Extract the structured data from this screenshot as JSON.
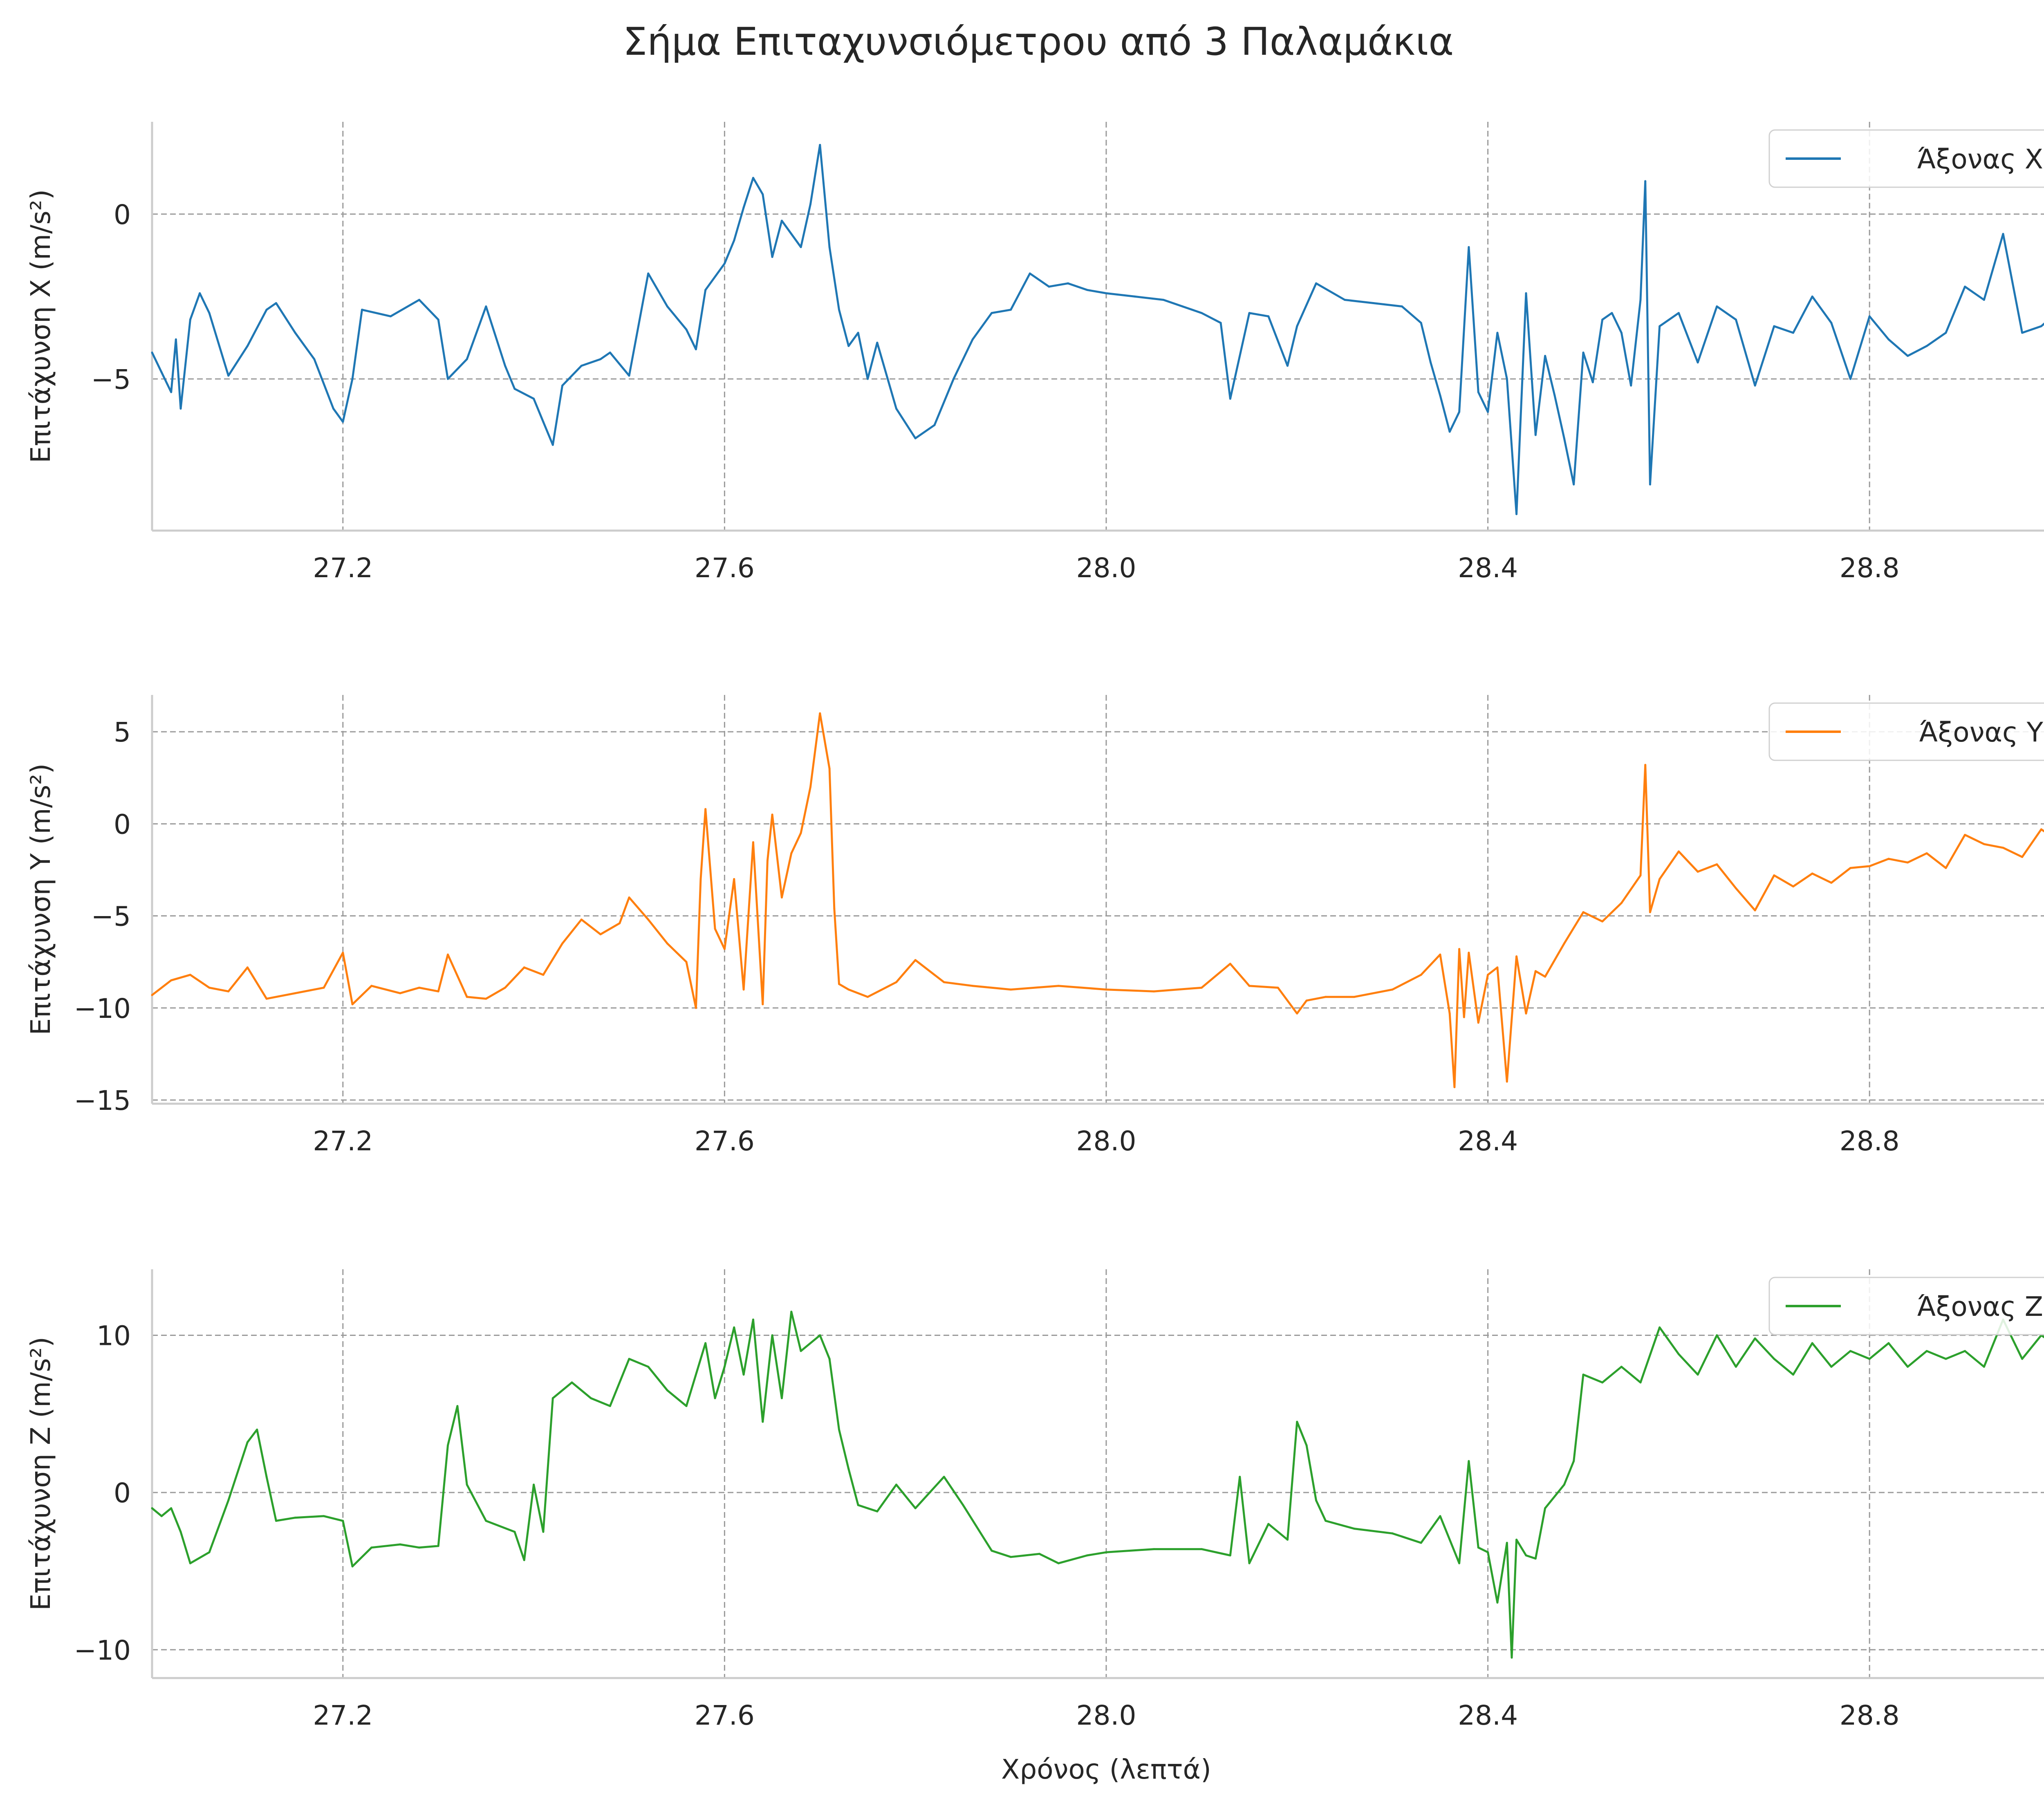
{
  "suptitle": "Σήμα Επιταχυνσιόμετρου από 3 Παλαμάκια",
  "chart_data": [
    {
      "type": "line",
      "title": "",
      "xlabel": "",
      "ylabel": "Επιτάχυνση X (m/s²)",
      "xlim": [
        27.0,
        29.0
      ],
      "ylim": [
        -9.6,
        2.8
      ],
      "xticks": [
        "27.2",
        "27.6",
        "28.0",
        "28.4",
        "28.8"
      ],
      "xtick_values": [
        27.2,
        27.6,
        28.0,
        28.4,
        28.8
      ],
      "yticks": [
        "0",
        "−5"
      ],
      "ytick_values": [
        0,
        -5
      ],
      "grid": true,
      "legend": "top-right",
      "series": [
        {
          "name": "Άξονας X",
          "color": "#1f77b4",
          "x": [
            27.0,
            27.01,
            27.02,
            27.025,
            27.03,
            27.04,
            27.05,
            27.06,
            27.08,
            27.1,
            27.12,
            27.13,
            27.15,
            27.17,
            27.19,
            27.2,
            27.21,
            27.22,
            27.25,
            27.28,
            27.3,
            27.31,
            27.33,
            27.35,
            27.37,
            27.38,
            27.4,
            27.41,
            27.42,
            27.43,
            27.45,
            27.47,
            27.48,
            27.5,
            27.52,
            27.54,
            27.56,
            27.57,
            27.58,
            27.6,
            27.61,
            27.62,
            27.63,
            27.64,
            27.65,
            27.66,
            27.68,
            27.69,
            27.7,
            27.71,
            27.72,
            27.73,
            27.74,
            27.75,
            27.76,
            27.78,
            27.8,
            27.82,
            27.84,
            27.86,
            27.88,
            27.9,
            27.92,
            27.94,
            27.96,
            27.98,
            28.0,
            28.03,
            28.06,
            28.08,
            28.1,
            28.12,
            28.13,
            28.15,
            28.17,
            28.19,
            28.2,
            28.22,
            28.25,
            28.28,
            28.31,
            28.33,
            28.34,
            28.35,
            28.36,
            28.37,
            28.38,
            28.39,
            28.4,
            28.41,
            28.42,
            28.43,
            28.44,
            28.45,
            28.46,
            28.47,
            28.48,
            28.49,
            28.5,
            28.51,
            28.52,
            28.53,
            28.54,
            28.55,
            28.56,
            28.565,
            28.57,
            28.58,
            28.6,
            28.62,
            28.64,
            28.66,
            28.68,
            28.7,
            28.72,
            28.74,
            28.76,
            28.78,
            28.8,
            28.82,
            28.84,
            28.86,
            28.88,
            28.9,
            28.92,
            28.94,
            28.96,
            28.98,
            29.0
          ],
          "values": [
            -4.2,
            -4.8,
            -5.4,
            -3.8,
            -5.9,
            -3.2,
            -2.4,
            -3.0,
            -4.9,
            -4.0,
            -2.9,
            -2.7,
            -3.6,
            -4.4,
            -5.9,
            -6.3,
            -5.0,
            -2.9,
            -3.1,
            -2.6,
            -3.2,
            -5.0,
            -4.4,
            -2.8,
            -4.6,
            -5.3,
            -5.6,
            -6.3,
            -7.0,
            -5.2,
            -4.6,
            -4.4,
            -4.2,
            -4.9,
            -1.8,
            -2.8,
            -3.5,
            -4.1,
            -2.3,
            -1.5,
            -0.8,
            0.2,
            1.1,
            0.6,
            -1.3,
            -0.2,
            -1.0,
            0.3,
            2.1,
            -1.0,
            -2.9,
            -4.0,
            -3.6,
            -5.0,
            -3.9,
            -5.9,
            -6.8,
            -6.4,
            -5.0,
            -3.8,
            -3.0,
            -2.9,
            -1.8,
            -2.2,
            -2.1,
            -2.3,
            -2.4,
            -2.5,
            -2.6,
            -2.8,
            -3.0,
            -3.3,
            -5.6,
            -3.0,
            -3.1,
            -4.6,
            -3.4,
            -2.1,
            -2.6,
            -2.7,
            -2.8,
            -3.3,
            -4.5,
            -5.5,
            -6.6,
            -6.0,
            -1.0,
            -5.4,
            -6.0,
            -3.6,
            -5.0,
            -9.1,
            -2.4,
            -6.7,
            -4.3,
            -5.5,
            -6.8,
            -8.2,
            -4.2,
            -5.1,
            -3.2,
            -3.0,
            -3.6,
            -5.2,
            -2.6,
            1.0,
            -8.2,
            -3.4,
            -3.0,
            -4.5,
            -2.8,
            -3.2,
            -5.2,
            -3.4,
            -3.6,
            -2.5,
            -3.3,
            -5.0,
            -3.1,
            -3.8,
            -4.3,
            -4.0,
            -3.6,
            -2.2,
            -2.6,
            -0.6,
            -3.6,
            -3.4,
            -2.9
          ]
        }
      ]
    },
    {
      "type": "line",
      "title": "",
      "xlabel": "",
      "ylabel": "Επιτάχυνση Y (m/s²)",
      "xlim": [
        27.0,
        29.0
      ],
      "ylim": [
        -15.2,
        7.0
      ],
      "xticks": [
        "27.2",
        "27.6",
        "28.0",
        "28.4",
        "28.8"
      ],
      "xtick_values": [
        27.2,
        27.6,
        28.0,
        28.4,
        28.8
      ],
      "yticks": [
        "5",
        "0",
        "−5",
        "−10",
        "−15"
      ],
      "ytick_values": [
        5,
        0,
        -5,
        -10,
        -15
      ],
      "grid": true,
      "legend": "top-right",
      "series": [
        {
          "name": "Άξονας Y",
          "color": "#ff7f0e",
          "x": [
            27.0,
            27.02,
            27.04,
            27.06,
            27.08,
            27.1,
            27.12,
            27.15,
            27.18,
            27.2,
            27.21,
            27.23,
            27.26,
            27.28,
            27.3,
            27.31,
            27.33,
            27.35,
            27.37,
            27.39,
            27.41,
            27.43,
            27.45,
            27.47,
            27.49,
            27.5,
            27.52,
            27.54,
            27.56,
            27.57,
            27.575,
            27.58,
            27.59,
            27.6,
            27.61,
            27.62,
            27.63,
            27.64,
            27.645,
            27.65,
            27.66,
            27.67,
            27.68,
            27.69,
            27.7,
            27.71,
            27.715,
            27.72,
            27.73,
            27.75,
            27.78,
            27.8,
            27.83,
            27.86,
            27.9,
            27.95,
            28.0,
            28.05,
            28.1,
            28.13,
            28.15,
            28.18,
            28.2,
            28.21,
            28.23,
            28.26,
            28.3,
            28.33,
            28.35,
            28.36,
            28.365,
            28.37,
            28.375,
            28.38,
            28.39,
            28.4,
            28.41,
            28.42,
            28.43,
            28.44,
            28.45,
            28.46,
            28.48,
            28.5,
            28.52,
            28.54,
            28.56,
            28.565,
            28.57,
            28.58,
            28.6,
            28.62,
            28.64,
            28.66,
            28.68,
            28.7,
            28.72,
            28.74,
            28.76,
            28.78,
            28.8,
            28.82,
            28.84,
            28.86,
            28.88,
            28.9,
            28.92,
            28.94,
            28.96,
            28.98,
            29.0
          ],
          "values": [
            -9.3,
            -8.5,
            -8.2,
            -8.9,
            -9.1,
            -7.8,
            -9.5,
            -9.2,
            -8.9,
            -7.0,
            -9.8,
            -8.8,
            -9.2,
            -8.9,
            -9.1,
            -7.1,
            -9.4,
            -9.5,
            -8.9,
            -7.8,
            -8.2,
            -6.5,
            -5.2,
            -6.0,
            -5.4,
            -4.0,
            -5.2,
            -6.5,
            -7.5,
            -10.0,
            -3.0,
            0.8,
            -5.7,
            -6.8,
            -3.0,
            -9.0,
            -1.0,
            -9.8,
            -2.0,
            0.5,
            -4.0,
            -1.6,
            -0.5,
            2.0,
            6.0,
            3.0,
            -4.6,
            -8.7,
            -9.0,
            -9.4,
            -8.6,
            -7.4,
            -8.6,
            -8.8,
            -9.0,
            -8.8,
            -9.0,
            -9.1,
            -8.9,
            -7.6,
            -8.8,
            -8.9,
            -10.3,
            -9.6,
            -9.4,
            -9.4,
            -9.0,
            -8.2,
            -7.1,
            -10.3,
            -14.3,
            -6.8,
            -10.5,
            -7.0,
            -10.8,
            -8.2,
            -7.8,
            -14.0,
            -7.2,
            -10.3,
            -8.0,
            -8.3,
            -6.5,
            -4.8,
            -5.3,
            -4.3,
            -2.8,
            3.2,
            -4.8,
            -3.0,
            -1.5,
            -2.6,
            -2.2,
            -3.5,
            -4.7,
            -2.8,
            -3.4,
            -2.7,
            -3.2,
            -2.4,
            -2.3,
            -1.9,
            -2.1,
            -1.6,
            -2.4,
            -0.6,
            -1.1,
            -1.3,
            -1.8,
            -0.3,
            -1.0
          ]
        }
      ]
    },
    {
      "type": "line",
      "title": "",
      "xlabel": "Χρόνος (λεπτά)",
      "ylabel": "Επιτάχυνση Z (m/s²)",
      "xlim": [
        27.0,
        29.0
      ],
      "ylim": [
        -11.8,
        14.2
      ],
      "xticks": [
        "27.2",
        "27.6",
        "28.0",
        "28.4",
        "28.8"
      ],
      "xtick_values": [
        27.2,
        27.6,
        28.0,
        28.4,
        28.8
      ],
      "yticks": [
        "10",
        "0",
        "−10"
      ],
      "ytick_values": [
        10,
        0,
        -10
      ],
      "grid": true,
      "legend": "top-right",
      "series": [
        {
          "name": "Άξονας Z",
          "color": "#2ca02c",
          "x": [
            27.0,
            27.01,
            27.02,
            27.03,
            27.04,
            27.06,
            27.08,
            27.1,
            27.11,
            27.12,
            27.13,
            27.15,
            27.18,
            27.2,
            27.21,
            27.23,
            27.26,
            27.28,
            27.3,
            27.31,
            27.32,
            27.33,
            27.35,
            27.38,
            27.39,
            27.4,
            27.41,
            27.42,
            27.44,
            27.46,
            27.48,
            27.5,
            27.52,
            27.54,
            27.56,
            27.58,
            27.59,
            27.6,
            27.61,
            27.62,
            27.63,
            27.64,
            27.65,
            27.66,
            27.67,
            27.68,
            27.7,
            27.71,
            27.72,
            27.73,
            27.74,
            27.75,
            27.76,
            27.78,
            27.8,
            27.83,
            27.85,
            27.88,
            27.9,
            27.93,
            27.95,
            27.98,
            28.0,
            28.05,
            28.1,
            28.13,
            28.14,
            28.15,
            28.17,
            28.19,
            28.2,
            28.21,
            28.22,
            28.23,
            28.26,
            28.3,
            28.33,
            28.35,
            28.37,
            28.38,
            28.39,
            28.4,
            28.41,
            28.42,
            28.425,
            28.43,
            28.44,
            28.45,
            28.46,
            28.48,
            28.49,
            28.5,
            28.52,
            28.54,
            28.56,
            28.58,
            28.6,
            28.62,
            28.64,
            28.66,
            28.68,
            28.7,
            28.72,
            28.74,
            28.76,
            28.78,
            28.8,
            28.82,
            28.84,
            28.86,
            28.88,
            28.9,
            28.92,
            28.94,
            28.96,
            28.98,
            29.0
          ],
          "values": [
            -1.0,
            -1.5,
            -1.0,
            -2.5,
            -4.5,
            -3.8,
            -0.5,
            3.2,
            4.0,
            1.0,
            -1.8,
            -1.6,
            -1.5,
            -1.8,
            -4.7,
            -3.5,
            -3.3,
            -3.5,
            -3.4,
            3.0,
            5.5,
            0.5,
            -1.8,
            -2.5,
            -4.3,
            0.5,
            -2.5,
            6.0,
            7.0,
            6.0,
            5.5,
            8.5,
            8.0,
            6.5,
            5.5,
            9.5,
            6.0,
            8.0,
            10.5,
            7.5,
            11.0,
            4.5,
            10.0,
            6.0,
            11.5,
            9.0,
            10.0,
            8.5,
            4.0,
            1.5,
            -0.8,
            -1.0,
            -1.2,
            0.5,
            -1.0,
            1.0,
            -0.8,
            -3.7,
            -4.1,
            -3.9,
            -4.5,
            -4.0,
            -3.8,
            -3.6,
            -3.6,
            -4.0,
            1.0,
            -4.5,
            -2.0,
            -3.0,
            4.5,
            3.0,
            -0.5,
            -1.8,
            -2.3,
            -2.6,
            -3.2,
            -1.5,
            -4.5,
            2.0,
            -3.5,
            -3.8,
            -7.0,
            -3.2,
            -10.5,
            -3.0,
            -4.0,
            -4.2,
            -1.0,
            0.5,
            2.0,
            7.5,
            7.0,
            8.0,
            7.0,
            10.5,
            8.8,
            7.5,
            10.0,
            8.0,
            9.8,
            8.5,
            7.5,
            9.5,
            8.0,
            9.0,
            8.5,
            9.5,
            8.0,
            9.0,
            8.5,
            9.0,
            8.0,
            11.0,
            8.5,
            10.0,
            9.2
          ]
        }
      ]
    }
  ]
}
